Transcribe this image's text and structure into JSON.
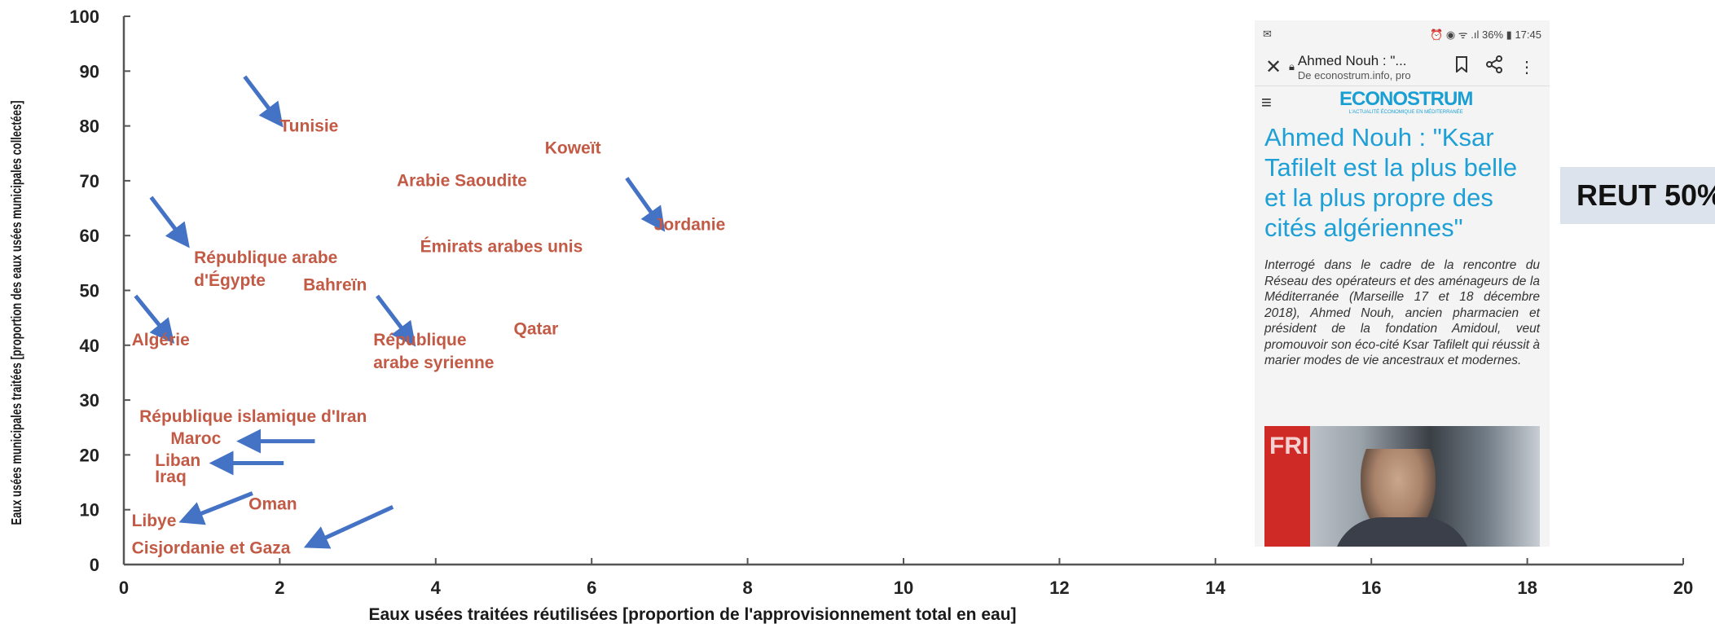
{
  "chart_data": {
    "type": "scatter",
    "xlabel": "Eaux usées traitées réutilisées [proportion de l'approvisionnement total en eau]",
    "ylabel": "Eaux usées municipales traitées [proportion des eaux usées municipales collectées]",
    "xlim": [
      0,
      20
    ],
    "ylim": [
      0,
      100
    ],
    "xticks": [
      0,
      2,
      4,
      6,
      8,
      10,
      12,
      14,
      16,
      18,
      20
    ],
    "yticks": [
      0,
      10,
      20,
      30,
      40,
      50,
      60,
      70,
      80,
      90,
      100
    ],
    "points": [
      {
        "label": "Tunisie",
        "x": 2.0,
        "y": 79
      },
      {
        "label": "Koweït",
        "x": 5.4,
        "y": 75
      },
      {
        "label": "Arabie Saoudite",
        "x": 3.5,
        "y": 69
      },
      {
        "label": "Jordanie",
        "x": 6.8,
        "y": 61
      },
      {
        "label": "Émirats arabes unis",
        "x": 3.8,
        "y": 57
      },
      {
        "label": "République arabe d'Égypte",
        "x": 0.9,
        "y": 55
      },
      {
        "label": "Bahreïn",
        "x": 2.3,
        "y": 50
      },
      {
        "label": "Algérie",
        "x": 0.1,
        "y": 40
      },
      {
        "label": "République arabe syrienne",
        "x": 3.2,
        "y": 40
      },
      {
        "label": "Qatar",
        "x": 5.0,
        "y": 42
      },
      {
        "label": "République islamique d'Iran",
        "x": 0.2,
        "y": 26
      },
      {
        "label": "Maroc",
        "x": 0.6,
        "y": 22
      },
      {
        "label": "Liban",
        "x": 0.4,
        "y": 18
      },
      {
        "label": "Iraq",
        "x": 0.4,
        "y": 15
      },
      {
        "label": "Oman",
        "x": 1.6,
        "y": 10
      },
      {
        "label": "Libye",
        "x": 0.1,
        "y": 7
      },
      {
        "label": "Cisjordanie et Gaza",
        "x": 0.1,
        "y": 2
      }
    ],
    "annotations": "blue arrows point to Tunisie, République arabe d'Égypte, Algérie, République arabe syrienne, Jordanie, Maroc, Liban, Libye, Cisjordanie et Gaza",
    "arrow_color": "#4472c4",
    "label_color": "#c25a45"
  },
  "phone": {
    "status_icons": "⏰ ◉ ᯤ .ıl",
    "status_battery": "36%",
    "status_time": "17:45",
    "close_icon": "✕",
    "page_title": "Ahmed Nouh : \"...",
    "page_url": "De econostrum.info, pro",
    "logo_text": "ECONOSTRUM",
    "logo_tagline": "L'ACTUALITÉ ÉCONOMIQUE EN MÉDITERRANÉE",
    "headline": "Ahmed Nouh : \"Ksar Tafilelt est la plus belle et la plus propre des cités algériennes\"",
    "lede": "Interrogé dans le cadre de la rencontre du Réseau des opérateurs et des aménageurs de la Méditerranée (Marseille 17 et 18 décembre 2018), Ahmed Nouh, ancien pharmacien et président de la fondation Amidoul, veut promouvoir son éco-cité Ksar Tafilelt qui réussit à marier modes de vie ancestraux et modernes.",
    "photo_banner": "FRI"
  },
  "side_label": "REUT 50%"
}
